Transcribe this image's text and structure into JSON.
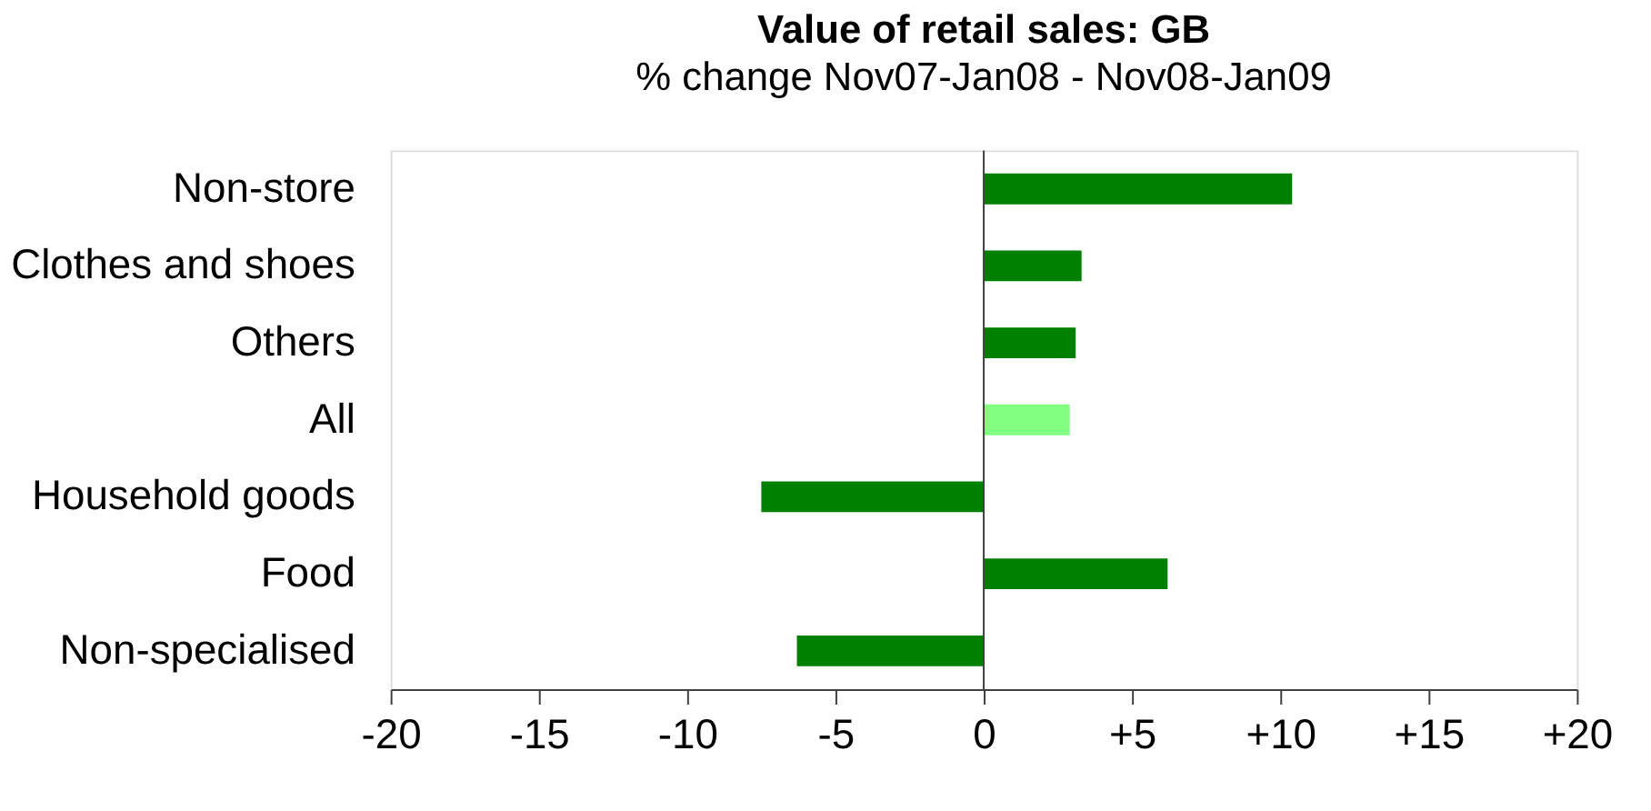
{
  "chart_data": {
    "type": "bar",
    "orientation": "horizontal",
    "title": "Value of retail sales: GB",
    "subtitle": "% change Nov07-Jan08 - Nov08-Jan09",
    "categories": [
      "Non-store",
      "Clothes and shoes",
      "Others",
      "All",
      "Household goods",
      "Food",
      "Non-specialised"
    ],
    "values": [
      10.4,
      3.3,
      3.1,
      2.9,
      -7.5,
      6.2,
      -6.3
    ],
    "colors": [
      "#008000",
      "#008000",
      "#008000",
      "#80ff80",
      "#008000",
      "#008000",
      "#008000"
    ],
    "xlim": [
      -20,
      20
    ],
    "xticks": [
      -20,
      -15,
      -10,
      -5,
      0,
      {
        "value": 5,
        "label": "+5"
      },
      {
        "value": 10,
        "label": "+10"
      },
      {
        "value": 15,
        "label": "+15"
      },
      {
        "value": 20,
        "label": "+20"
      }
    ],
    "ref_lines": [
      {
        "axis": "x",
        "value": 0,
        "label": null,
        "color": "#404040"
      }
    ],
    "grid": false
  }
}
